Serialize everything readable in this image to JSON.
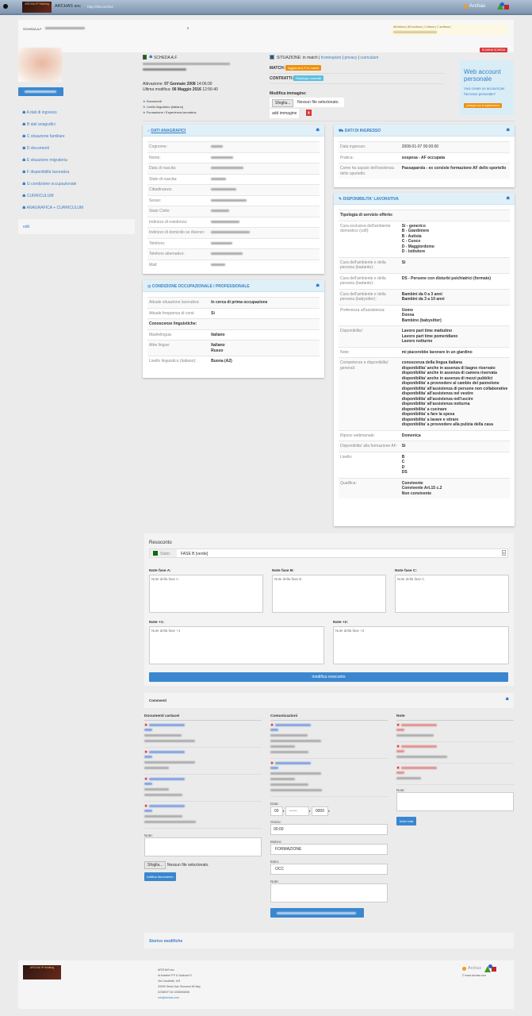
{
  "header": {
    "company": "ARCHAS snc",
    "url": "http://dev.archas",
    "logo_text": "ARCHAI IP thinking",
    "brand": "Archas"
  },
  "top_panel": {
    "title": "SCHEDA A.F",
    "permissions": "AB lettura | AB scrittura | C lettura | C scrittura |"
  },
  "profile": {
    "scheda_label": "SCHEDA A.F",
    "activation_label": "Attivazione:",
    "activation_date": "07 Gennaio 2008",
    "activation_time": "14:06:00",
    "modified_label": "Ultima modifica:",
    "modified_date": "06 Maggio 2016",
    "modified_time": "12:56:40",
    "bullets": [
      "Documenti",
      "Livello linguistico (italiano)",
      "Formazione / Esperienza lavorativa"
    ]
  },
  "situation": {
    "label": "SITUAZIONE:",
    "value": "in match",
    "links": [
      "frontespizio",
      "privacy",
      "curriculum"
    ],
    "match_label": "MATCH:",
    "match_button": "Aggiorna A.F in match",
    "contracts_label": "CONTRATTI:",
    "contracts_button": "Riepilogo contratti",
    "image_label": "Modifica immagine:",
    "browse": "Sfoglia...",
    "no_file": "Nessun file selezionato.",
    "add_image": "add immagine"
  },
  "delete_button": "ELIMINA SCHEDA",
  "web_account": {
    "title": "Web account personale",
    "text": "Vuoi creare un account per l'accesso personale?",
    "button": "prosegui con la registrazione"
  },
  "sidebar": {
    "items": [
      "A dati di ingresso",
      "B dati anagrafici",
      "C situazione familiare",
      "D documenti",
      "E situazione migratoria",
      "F disponibilità lavorativa",
      "G condizione occupazionale",
      "CURRICULUM",
      "ANAGRAFICA + CURRICULUM"
    ],
    "edit": "edit"
  },
  "anagrafici": {
    "title": "DATI ANAGRAFICI",
    "rows": [
      {
        "k": "Cognome:"
      },
      {
        "k": "Nome:"
      },
      {
        "k": "Data di nascita:"
      },
      {
        "k": "Stato di nascita:"
      },
      {
        "k": "Cittadinanza:"
      },
      {
        "k": "Sesso:"
      },
      {
        "k": "Stato Civile:"
      },
      {
        "k": "Indirizzo di residenza:"
      },
      {
        "k": "Indirizzo di domicilio se diverso:"
      },
      {
        "k": "Telefono:"
      },
      {
        "k": "Telefono alternativo:"
      },
      {
        "k": "Mail:"
      }
    ]
  },
  "occupazionale": {
    "title": "CONDIZIONE OCCUPAZIONALE / PROFESSIONALE",
    "rows": [
      {
        "k": "Attuale situazione lavorativa:",
        "v": "In cerca di prima occupazione"
      },
      {
        "k": "Attuale frequenza di corsi:",
        "v": "Si"
      },
      {
        "section": "Conoscenze linguistiche:"
      },
      {
        "k": "Madrelingua:",
        "v": "Italiano"
      },
      {
        "k": "Altre lingue:",
        "v": "Italiano\nRusso"
      },
      {
        "k": "Livello linguistico (italiano):",
        "v": "Buona (A2)"
      }
    ]
  },
  "ingresso": {
    "title": "DATI DI INGRESSO",
    "rows": [
      {
        "k": "Data ingresso:",
        "v": "2008-01-07 00:00:00",
        "plain": true
      },
      {
        "k": "Pratica:",
        "v": "sospesa - AF occupata"
      },
      {
        "k": "Come ha saputo dell'esistenza dello sportello:",
        "v": "Passaparola - ex corsiste formazione AF dello sportello"
      }
    ]
  },
  "disponibilita": {
    "title": "DISPONIBILITA' LAVORATIVA",
    "rows": [
      {
        "section": "Tipologia di servizio offerto:"
      },
      {
        "k": "Cura esclusiva dell'ambiente domestico (colf):",
        "v": "Si - generico\nB - Giardiniere\nB - Autista\nC - Cuoco\nD - Maggiordomo\nD - Istitutore"
      },
      {
        "k": "Cura dell'ambiente e della persona (badante):",
        "v": "Si"
      },
      {
        "k": "Cura dell'ambiente e della persona (badante):",
        "v": "DS - Persone con disturbi psichiatrici (formato)"
      },
      {
        "k": "Cura dell'ambiente e della persona (babysitter):",
        "v": "Bambini da 0 a 3 anni\nBambini da 3 a 10 anni"
      },
      {
        "k": "Preferenza all'assistenza:",
        "v": "Uomo\nDonna\nBambino (babysitter)"
      },
      {
        "k": "Disponibilita':",
        "v": "Lavoro part time mattutino\nLavoro part time pomeridiano\nLavoro notturno"
      },
      {
        "k": "Note:",
        "v": "mi piacerebbe lavorare in un giardino"
      },
      {
        "k": "Competenze e disponibilita' generali:",
        "v": "conoscenza della lingua italiana\ndisponibilita' anche in assenza di bagno riservato\ndisponibilita' anche in assenza di camera riservata\ndisponibilita' anche in assenza di mezzi pubblici\ndisponibilita' a provvedere al cambio del pannolone\ndisponibilita' all'assistenza di persone non collaborative\ndisponibilita' all'assistenza nel vestire\ndisponibilita' all'assistenza nell'uscire\ndisponibilita' all'assistenza notturna\ndisponibilita' a cucinare\ndisponibilita' a fare la spesa\ndisponibilita' a lavare e stirare\ndisponibilita' a provvedere alla pulizia della casa"
      },
      {
        "k": "Riposo settimanale:",
        "v": "Domenica"
      },
      {
        "k": "Disponibilita' alla formazione AF:",
        "v": "Si"
      },
      {
        "k": "Livello:",
        "v": "B\nC\nD\nDS"
      },
      {
        "k": "Qualifica:",
        "v": "Convivente\nConvivente Art.15 c.2\nNon convivente"
      }
    ]
  },
  "resoconto": {
    "title": "Resoconto",
    "stato_label": "Stato:",
    "stato_value": "FASE B [verde]",
    "stato_color": "#0a6b0a",
    "fasi": [
      {
        "label": "Note fase A:",
        "placeholder": "Note della fase A"
      },
      {
        "label": "Note fase B:",
        "placeholder": "Note della fase B"
      },
      {
        "label": "Note fase C:",
        "placeholder": "Note della fase C"
      }
    ],
    "extra": [
      {
        "label": "Note +1:",
        "placeholder": "Note della fase +1"
      },
      {
        "label": "Note +2:",
        "placeholder": "Note della fase +2"
      }
    ],
    "button": "modifica resoconto"
  },
  "commenti": {
    "title": "Commenti",
    "documenti": {
      "title": "Documenti cartacei",
      "note_label": "Note:",
      "browse": "Sfoglia...",
      "no_file": "Nessun file selezionato.",
      "button": "notifica documento"
    },
    "comunicazioni": {
      "title": "Comunicazioni",
      "data_label": "Data:",
      "day": "00",
      "month": "------",
      "year": "0000",
      "orario_label": "Orario:",
      "orario": "00:00",
      "motivo_label": "Motivo:",
      "motivo": "FORMAZIONE",
      "esito_label": "Esito:",
      "esito": "OCC",
      "note_label": "Note:"
    },
    "note": {
      "title": "Note",
      "note_label": "Note:",
      "button": "invia nota"
    }
  },
  "storico": "Storico modifiche",
  "footer": {
    "lines": [
      "ARCHAS snc",
      "di Anselmi P.P & Scalzaci S.",
      "Via Cavallotti, 193",
      "20099 Sesto San Giovanni MI Italy",
      "0236507744 0236506608"
    ],
    "email": "info@archas.com",
    "copyright": "© www.archas.com"
  },
  "colors": {
    "accent": "#3a7fc4",
    "primary_button": "#3a87cf",
    "orange": "#f0900a",
    "danger": "#d9383a",
    "info": "#5bc0de",
    "panel_header": "#dff0f8"
  }
}
